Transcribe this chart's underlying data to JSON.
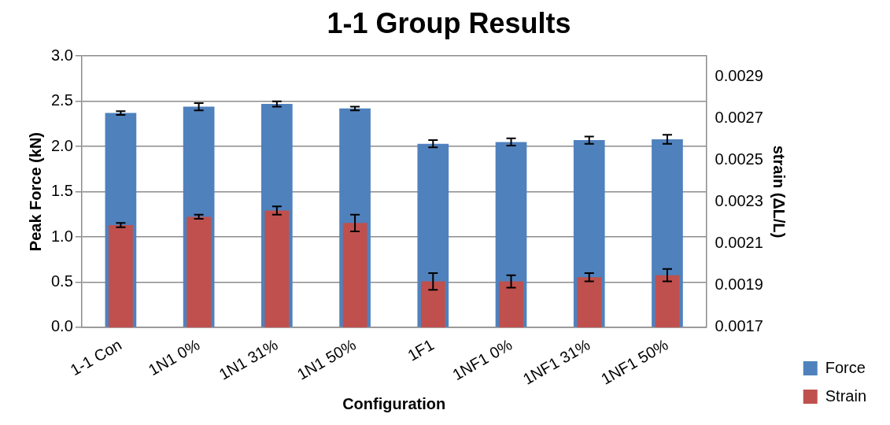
{
  "chart_data": {
    "type": "bar",
    "title": "1-1 Group Results",
    "xlabel": "Configuration",
    "ylabel": "Peak Force (kN)",
    "y2label": "strain (ΔL/L)",
    "categories": [
      "1-1 Con",
      "1N1 0%",
      "1N1 31%",
      "1N1 50%",
      "1F1",
      "1NF1 0%",
      "1NF1 31%",
      "1NF1 50%"
    ],
    "series": [
      {
        "name": "Force",
        "color": "#4f81bd",
        "values": [
          2.37,
          2.44,
          2.47,
          2.42,
          2.03,
          2.05,
          2.07,
          2.08
        ],
        "errors": [
          0.02,
          0.04,
          0.03,
          0.02,
          0.04,
          0.04,
          0.04,
          0.05
        ]
      },
      {
        "name": "Strain",
        "color": "#c0504d",
        "axis": "y2",
        "values": [
          0.00219,
          0.00223,
          0.00226,
          0.0022,
          0.00192,
          0.00192,
          0.00194,
          0.00195
        ],
        "errors": [
          1e-05,
          1e-05,
          2e-05,
          4e-05,
          4e-05,
          3e-05,
          2e-05,
          3e-05
        ]
      }
    ],
    "ylim": [
      0,
      3
    ],
    "yticks": [
      {
        "value": 0,
        "label": "0.0"
      },
      {
        "value": 0.5,
        "label": "0.5"
      },
      {
        "value": 1,
        "label": "1.0"
      },
      {
        "value": 1.5,
        "label": "1.5"
      },
      {
        "value": 2,
        "label": "2.0"
      },
      {
        "value": 2.5,
        "label": "2.5"
      },
      {
        "value": 3,
        "label": "3.0"
      }
    ],
    "y2lim": [
      0.0017,
      0.003
    ],
    "y2ticks": [
      0.0017,
      0.0019,
      0.0021,
      0.0023,
      0.0025,
      0.0027,
      0.0029
    ],
    "grid": "y",
    "legend": "bottom right"
  }
}
